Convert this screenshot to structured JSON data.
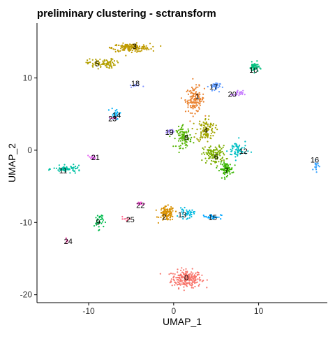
{
  "chart_data": {
    "type": "scatter",
    "title": "preliminary clustering - sctransform",
    "xlabel": "UMAP_1",
    "ylabel": "UMAP_2",
    "xlim": [
      -16,
      18
    ],
    "ylim": [
      -21,
      17.5
    ],
    "xticks": [
      -10,
      0,
      10
    ],
    "yticks": [
      -20,
      -10,
      0,
      10
    ],
    "xtick_labels": [
      "-10",
      "0",
      "10"
    ],
    "ytick_labels": [
      "-20",
      "-10",
      "0",
      "10"
    ],
    "grid": false,
    "legend": "none",
    "clusters": [
      {
        "label": "0",
        "color": "#f8766d",
        "x": 1.5,
        "y": -17.8,
        "sx": 1.6,
        "sy": 1.1,
        "n": 230
      },
      {
        "label": "1",
        "color": "#ea8331",
        "x": 2.5,
        "y": 7.0,
        "sx": 1.0,
        "sy": 1.6,
        "n": 140
      },
      {
        "label": "2",
        "color": "#d89000",
        "x": -0.8,
        "y": -8.8,
        "sx": 0.8,
        "sy": 0.9,
        "n": 110
      },
      {
        "label": "3",
        "color": "#c09b00",
        "x": -5.0,
        "y": 14.2,
        "sx": 2.0,
        "sy": 0.5,
        "n": 170
      },
      {
        "label": "4",
        "color": "#a3a500",
        "x": 3.8,
        "y": 2.8,
        "sx": 1.0,
        "sy": 1.5,
        "n": 110
      },
      {
        "label": "5",
        "color": "#b3a000",
        "x": -8.5,
        "y": 12.0,
        "sx": 1.5,
        "sy": 0.6,
        "n": 90
      },
      {
        "label": "6",
        "color": "#7cae00",
        "x": 4.8,
        "y": -0.6,
        "sx": 1.2,
        "sy": 1.1,
        "n": 120
      },
      {
        "label": "7",
        "color": "#39b600",
        "x": 6.2,
        "y": -2.6,
        "sx": 0.7,
        "sy": 0.8,
        "n": 90
      },
      {
        "label": "8",
        "color": "#53b400",
        "x": 1.2,
        "y": 1.8,
        "sx": 0.8,
        "sy": 1.3,
        "n": 90
      },
      {
        "label": "9",
        "color": "#00bb4e",
        "x": -8.8,
        "y": -9.8,
        "sx": 0.5,
        "sy": 1.0,
        "n": 35
      },
      {
        "label": "10",
        "color": "#00bf7d",
        "x": 9.5,
        "y": 11.5,
        "sx": 0.5,
        "sy": 0.6,
        "n": 50
      },
      {
        "label": "11",
        "color": "#00c1a3",
        "x": -12.5,
        "y": -2.6,
        "sx": 1.5,
        "sy": 0.4,
        "n": 65
      },
      {
        "label": "12",
        "color": "#00bfc4",
        "x": 7.5,
        "y": 0.0,
        "sx": 1.0,
        "sy": 1.2,
        "n": 60
      },
      {
        "label": "13",
        "color": "#00bae0",
        "x": 1.5,
        "y": -8.8,
        "sx": 0.8,
        "sy": 0.6,
        "n": 40
      },
      {
        "label": "14",
        "color": "#00b0f6",
        "x": -6.8,
        "y": 5.0,
        "sx": 0.5,
        "sy": 0.8,
        "n": 30
      },
      {
        "label": "15",
        "color": "#00a5ff",
        "x": 4.5,
        "y": -9.2,
        "sx": 1.0,
        "sy": 0.3,
        "n": 35
      },
      {
        "label": "16",
        "color": "#35a2ff",
        "x": 16.8,
        "y": -2.0,
        "sx": 0.3,
        "sy": 0.8,
        "n": 15
      },
      {
        "label": "17",
        "color": "#619cff",
        "x": 4.8,
        "y": 8.8,
        "sx": 0.6,
        "sy": 0.6,
        "n": 35
      },
      {
        "label": "18",
        "color": "#8494ff",
        "x": -4.5,
        "y": 9.0,
        "sx": 0.6,
        "sy": 0.3,
        "n": 10
      },
      {
        "label": "19",
        "color": "#a58aff",
        "x": -0.5,
        "y": 2.5,
        "sx": 0.5,
        "sy": 0.3,
        "n": 15
      },
      {
        "label": "20",
        "color": "#c77cff",
        "x": 7.5,
        "y": 7.8,
        "sx": 0.6,
        "sy": 0.4,
        "n": 25
      },
      {
        "label": "21",
        "color": "#e76bf3",
        "x": -9.5,
        "y": -1.0,
        "sx": 0.4,
        "sy": 0.3,
        "n": 15
      },
      {
        "label": "22",
        "color": "#fa62db",
        "x": -4.0,
        "y": -7.4,
        "sx": 0.5,
        "sy": 0.2,
        "n": 15
      },
      {
        "label": "23",
        "color": "#ff61c9",
        "x": -7.0,
        "y": 4.5,
        "sx": 0.5,
        "sy": 0.2,
        "n": 12
      },
      {
        "label": "24",
        "color": "#ff62bc",
        "x": -12.5,
        "y": -12.5,
        "sx": 0.3,
        "sy": 0.3,
        "n": 8
      },
      {
        "label": "25",
        "color": "#ff6c91",
        "x": -5.5,
        "y": -9.5,
        "sx": 0.4,
        "sy": 0.3,
        "n": 8
      }
    ],
    "labels": [
      {
        "text": "0",
        "x": 1.5,
        "y": -17.6
      },
      {
        "text": "1",
        "x": 2.8,
        "y": 7.5
      },
      {
        "text": "2",
        "x": -1.1,
        "y": -9.2
      },
      {
        "text": "3",
        "x": -4.6,
        "y": 14.4
      },
      {
        "text": "4",
        "x": 3.8,
        "y": 2.8
      },
      {
        "text": "5",
        "x": -9.0,
        "y": 12.0
      },
      {
        "text": "6",
        "x": 5.0,
        "y": -0.9
      },
      {
        "text": "7",
        "x": 6.2,
        "y": -2.8
      },
      {
        "text": "8",
        "x": 1.5,
        "y": 1.8
      },
      {
        "text": "9",
        "x": -8.9,
        "y": -9.9
      },
      {
        "text": "10",
        "x": 9.4,
        "y": 11.1
      },
      {
        "text": "11",
        "x": -13.0,
        "y": -2.8
      },
      {
        "text": "12",
        "x": 8.2,
        "y": -0.1
      },
      {
        "text": "13",
        "x": 1.0,
        "y": -8.9
      },
      {
        "text": "14",
        "x": -6.7,
        "y": 4.9
      },
      {
        "text": "15",
        "x": 4.6,
        "y": -9.3
      },
      {
        "text": "16",
        "x": 16.6,
        "y": -1.3
      },
      {
        "text": "17",
        "x": 4.7,
        "y": 8.8
      },
      {
        "text": "18",
        "x": -4.5,
        "y": 9.3
      },
      {
        "text": "19",
        "x": -0.5,
        "y": 2.5
      },
      {
        "text": "20",
        "x": 6.9,
        "y": 7.8
      },
      {
        "text": "21",
        "x": -9.2,
        "y": -1.0
      },
      {
        "text": "22",
        "x": -3.9,
        "y": -7.6
      },
      {
        "text": "23",
        "x": -7.2,
        "y": 4.4
      },
      {
        "text": "24",
        "x": -12.4,
        "y": -12.6
      },
      {
        "text": "25",
        "x": -5.1,
        "y": -9.6
      }
    ]
  }
}
